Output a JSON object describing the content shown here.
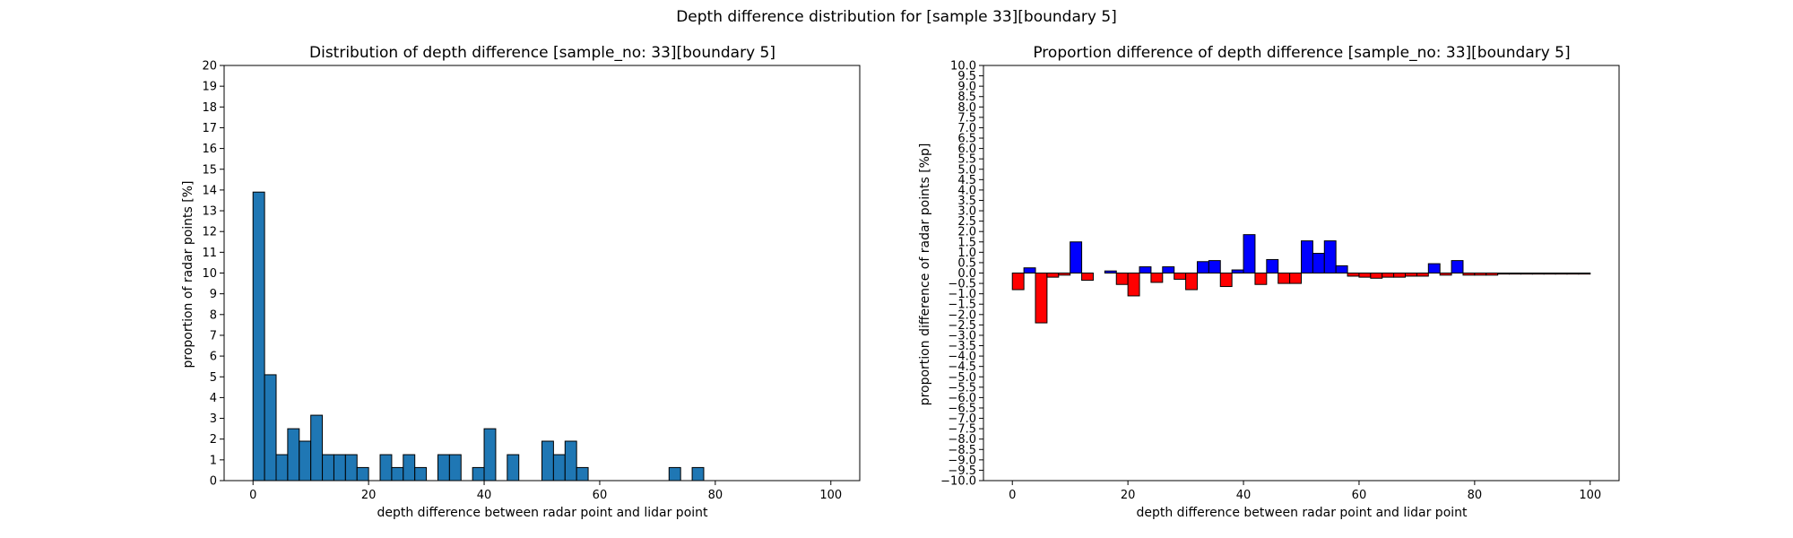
{
  "figure": {
    "suptitle": "Depth difference distribution for [sample 33][boundary 5]"
  },
  "chart_data": [
    {
      "type": "bar",
      "title": "Distribution of depth difference [sample_no: 33][boundary 5]",
      "xlabel": "depth difference between radar point and lidar point",
      "ylabel": "proportion of radar points [%]",
      "xlim": [
        -5,
        105
      ],
      "ylim": [
        0,
        20
      ],
      "xticks": [
        0,
        20,
        40,
        60,
        80,
        100
      ],
      "yticks": [
        0,
        1,
        2,
        3,
        4,
        5,
        6,
        7,
        8,
        9,
        10,
        11,
        12,
        13,
        14,
        15,
        16,
        17,
        18,
        19,
        20
      ],
      "bin_width": 2,
      "bin_starts": [
        0,
        2,
        4,
        6,
        8,
        10,
        12,
        14,
        16,
        18,
        20,
        22,
        24,
        26,
        28,
        30,
        32,
        34,
        36,
        38,
        40,
        42,
        44,
        46,
        48,
        50,
        52,
        54,
        56,
        58,
        60,
        62,
        64,
        66,
        68,
        70,
        72,
        74,
        76,
        78,
        80,
        82,
        84,
        86,
        88,
        90,
        92,
        94,
        96,
        98
      ],
      "values": [
        13.9,
        5.1,
        1.25,
        2.5,
        1.9,
        3.15,
        1.25,
        1.25,
        1.25,
        0.63,
        0,
        1.25,
        0.63,
        1.25,
        0.63,
        0,
        1.25,
        1.25,
        0,
        0.63,
        2.5,
        0,
        1.25,
        0,
        0,
        1.9,
        1.25,
        1.9,
        0.63,
        0,
        0,
        0,
        0,
        0,
        0,
        0,
        0.63,
        0,
        0.63,
        0,
        0,
        0,
        0,
        0,
        0,
        0,
        0,
        0,
        0,
        0
      ],
      "bar_color": "#1f77b4",
      "grid": false
    },
    {
      "type": "bar",
      "title": "Proportion difference of depth difference [sample_no: 33][boundary 5]",
      "xlabel": "depth difference between radar point and lidar point",
      "ylabel": "proportion difference of radar points [%p]",
      "xlim": [
        -5,
        105
      ],
      "ylim": [
        -10,
        10
      ],
      "xticks": [
        0,
        20,
        40,
        60,
        80,
        100
      ],
      "yticks": [
        -10.0,
        -9.5,
        -9.0,
        -8.5,
        -8.0,
        -7.5,
        -7.0,
        -6.5,
        -6.0,
        -5.5,
        -5.0,
        -4.5,
        -4.0,
        -3.5,
        -3.0,
        -2.5,
        -2.0,
        -1.5,
        -1.0,
        -0.5,
        0.0,
        0.5,
        1.0,
        1.5,
        2.0,
        2.5,
        3.0,
        3.5,
        4.0,
        4.5,
        5.0,
        5.5,
        6.0,
        6.5,
        7.0,
        7.5,
        8.0,
        8.5,
        9.0,
        9.5,
        10.0
      ],
      "bin_width": 2,
      "bin_starts": [
        0,
        2,
        4,
        6,
        8,
        10,
        12,
        14,
        16,
        18,
        20,
        22,
        24,
        26,
        28,
        30,
        32,
        34,
        36,
        38,
        40,
        42,
        44,
        46,
        48,
        50,
        52,
        54,
        56,
        58,
        60,
        62,
        64,
        66,
        68,
        70,
        72,
        74,
        76,
        78,
        80,
        82,
        84,
        86,
        88,
        90,
        92,
        94,
        96,
        98
      ],
      "values": [
        -0.8,
        0.25,
        -2.4,
        -0.2,
        -0.1,
        1.5,
        -0.35,
        0,
        0.1,
        -0.55,
        -1.1,
        0.3,
        -0.45,
        0.3,
        -0.3,
        -0.8,
        0.55,
        0.6,
        -0.65,
        0.15,
        1.85,
        -0.55,
        0.65,
        -0.5,
        -0.5,
        1.55,
        0.95,
        1.55,
        0.35,
        -0.15,
        -0.2,
        -0.25,
        -0.2,
        -0.2,
        -0.15,
        -0.15,
        0.45,
        -0.1,
        0.6,
        -0.1,
        -0.1,
        -0.1,
        -0.05,
        -0.05,
        -0.05,
        -0.05,
        -0.05,
        -0.05,
        -0.05,
        -0.05
      ],
      "positive_color": "#0000ff",
      "negative_color": "#ff0000",
      "grid": false
    }
  ]
}
